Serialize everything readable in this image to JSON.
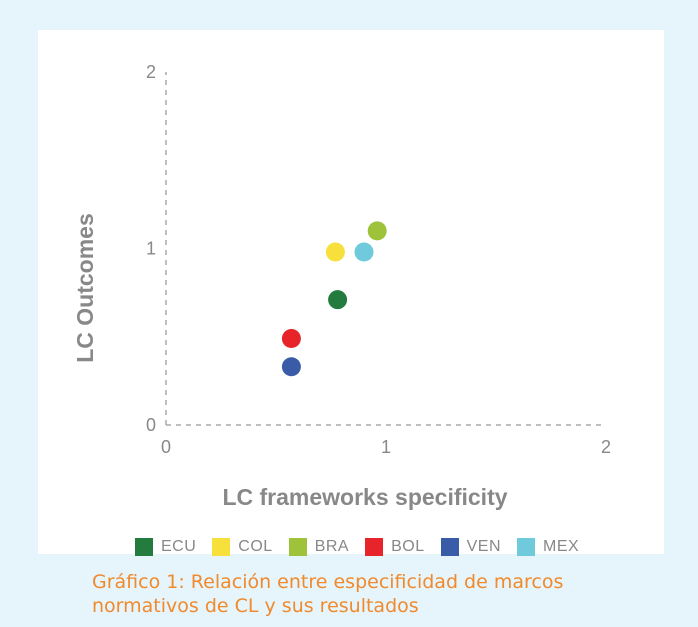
{
  "colors": {
    "background": "#e6f4fb",
    "caption": "#f08a2c",
    "axis": "#aaaaaa",
    "text": "#888888"
  },
  "caption": {
    "line1": "Gráfico 1: Relación entre especificidad de marcos",
    "line2": "normativos de CL y sus resultados"
  },
  "chart_data": {
    "type": "scatter",
    "title": "",
    "xlabel": "LC frameworks specificity",
    "ylabel": "LC Outcomes",
    "xlim": [
      0,
      2
    ],
    "ylim": [
      0,
      2
    ],
    "xticks": [
      "0",
      "1",
      "2"
    ],
    "yticks": [
      "0",
      "1",
      "2"
    ],
    "grid": false,
    "legend_position": "bottom",
    "series": [
      {
        "name": "ECU",
        "color": "#237b3e",
        "x": 0.78,
        "y": 0.71
      },
      {
        "name": "COL",
        "color": "#f7e03c",
        "x": 0.77,
        "y": 0.98
      },
      {
        "name": "BRA",
        "color": "#9ec23a",
        "x": 0.96,
        "y": 1.1
      },
      {
        "name": "BOL",
        "color": "#e8242b",
        "x": 0.57,
        "y": 0.49
      },
      {
        "name": "VEN",
        "color": "#3a5ba7",
        "x": 0.57,
        "y": 0.33
      },
      {
        "name": "MEX",
        "color": "#6fcbdc",
        "x": 0.9,
        "y": 0.98
      }
    ]
  }
}
